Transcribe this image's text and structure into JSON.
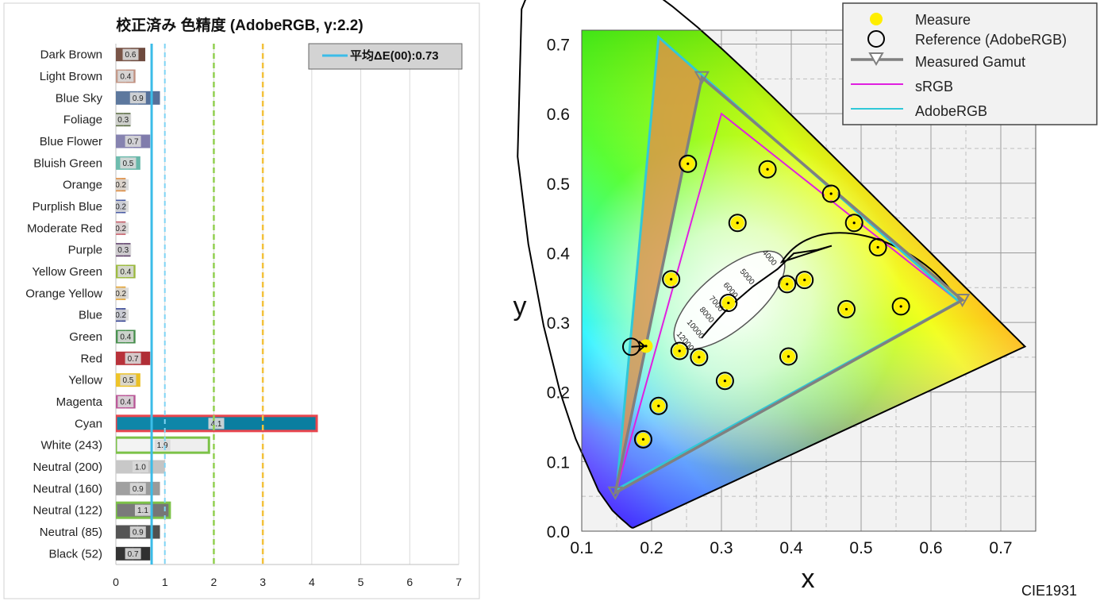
{
  "chart_data": [
    {
      "type": "bar",
      "title": "校正済み 色精度 (AdobeRGB, γ:2.2)",
      "legend": {
        "label": "平均ΔE(00):0.73",
        "position": "top-right"
      },
      "mean": 0.73,
      "reference_lines": [
        1,
        2,
        3
      ],
      "xlim": [
        0,
        7
      ],
      "xticks": [
        "0",
        "1",
        "2",
        "3",
        "4",
        "5",
        "6",
        "7"
      ],
      "grid": true,
      "bars": [
        {
          "name": "Dark Brown",
          "value": 0.6,
          "label": "0.6",
          "measured_color": "#7a5548",
          "reference_color": "#6e4a3e",
          "outline": ""
        },
        {
          "name": "Light Brown",
          "value": 0.4,
          "label": "0.4",
          "measured_color": "#c49a8a",
          "reference_color": "#c09080",
          "outline": ""
        },
        {
          "name": "Blue Sky",
          "value": 0.9,
          "label": "0.9",
          "measured_color": "#5d789e",
          "reference_color": "#55709a",
          "outline": ""
        },
        {
          "name": "Foliage",
          "value": 0.3,
          "label": "0.3",
          "measured_color": "#5b6e42",
          "reference_color": "#55683e",
          "outline": ""
        },
        {
          "name": "Blue Flower",
          "value": 0.7,
          "label": "0.7",
          "measured_color": "#8683b0",
          "reference_color": "#807cac",
          "outline": ""
        },
        {
          "name": "Bluish Green",
          "value": 0.5,
          "label": "0.5",
          "measured_color": "#6ebcae",
          "reference_color": "#68b8aa",
          "outline": ""
        },
        {
          "name": "Orange",
          "value": 0.2,
          "label": "0.2",
          "measured_color": "#e08a3a",
          "reference_color": "#dc8636",
          "outline": ""
        },
        {
          "name": "Purplish Blue",
          "value": 0.2,
          "label": "0.2",
          "measured_color": "#4a5ca6",
          "reference_color": "#4658a2",
          "outline": ""
        },
        {
          "name": "Moderate Red",
          "value": 0.2,
          "label": "0.2",
          "measured_color": "#c85a66",
          "reference_color": "#c45662",
          "outline": ""
        },
        {
          "name": "Purple",
          "value": 0.3,
          "label": "0.3",
          "measured_color": "#5e3e6a",
          "reference_color": "#5a3a66",
          "outline": ""
        },
        {
          "name": "Yellow Green",
          "value": 0.4,
          "label": "0.4",
          "measured_color": "#9ebc42",
          "reference_color": "#9ab83e",
          "outline": ""
        },
        {
          "name": "Orange Yellow",
          "value": 0.2,
          "label": "0.2",
          "measured_color": "#e8a42e",
          "reference_color": "#e4a02a",
          "outline": ""
        },
        {
          "name": "Blue",
          "value": 0.2,
          "label": "0.2",
          "measured_color": "#2e3e92",
          "reference_color": "#2a3a8e",
          "outline": ""
        },
        {
          "name": "Green",
          "value": 0.4,
          "label": "0.4",
          "measured_color": "#4a9250",
          "reference_color": "#468e4c",
          "outline": ""
        },
        {
          "name": "Red",
          "value": 0.7,
          "label": "0.7",
          "measured_color": "#b8323a",
          "reference_color": "#b02e36",
          "outline": ""
        },
        {
          "name": "Yellow",
          "value": 0.5,
          "label": "0.5",
          "measured_color": "#eec42a",
          "reference_color": "#eac026",
          "outline": ""
        },
        {
          "name": "Magenta",
          "value": 0.4,
          "label": "0.4",
          "measured_color": "#bc5a9a",
          "reference_color": "#b85696",
          "outline": ""
        },
        {
          "name": "Cyan",
          "value": 4.1,
          "label": "4.1",
          "measured_color": "#0e86a8",
          "reference_color": "#0a7ea0",
          "outline": "#e8464e"
        },
        {
          "name": "White (243)",
          "value": 1.9,
          "label": "1.9",
          "measured_color": "#f3f3f3",
          "reference_color": "#eeeeee",
          "outline": "#7cc248"
        },
        {
          "name": "Neutral (200)",
          "value": 1.0,
          "label": "1.0",
          "measured_color": "#c8c8c8",
          "reference_color": "#c4c4c4",
          "outline": ""
        },
        {
          "name": "Neutral (160)",
          "value": 0.9,
          "label": "0.9",
          "measured_color": "#a0a0a0",
          "reference_color": "#9a9a9a",
          "outline": ""
        },
        {
          "name": "Neutral (122)",
          "value": 1.1,
          "label": "1.1",
          "measured_color": "#7a7a7a",
          "reference_color": "#767676",
          "outline": "#7cc248"
        },
        {
          "name": "Neutral (85)",
          "value": 0.9,
          "label": "0.9",
          "measured_color": "#555555",
          "reference_color": "#505050",
          "outline": ""
        },
        {
          "name": "Black (52)",
          "value": 0.7,
          "label": "0.7",
          "measured_color": "#343434",
          "reference_color": "#303030",
          "outline": ""
        }
      ]
    },
    {
      "type": "scatter",
      "xlabel": "x",
      "ylabel": "y",
      "caption": "CIE1931",
      "xlim": [
        0.1,
        0.75
      ],
      "ylim": [
        0.0,
        0.72
      ],
      "xticks": [
        "0.1",
        "0.2",
        "0.3",
        "0.4",
        "0.5",
        "0.6",
        "0.7"
      ],
      "yticks": [
        "0.0",
        "0.1",
        "0.2",
        "0.3",
        "0.4",
        "0.5",
        "0.6",
        "0.7"
      ],
      "grid": true,
      "legend": {
        "position": "top-right",
        "items": [
          {
            "label": "Measure"
          },
          {
            "label": "Reference (AdobeRGB)"
          },
          {
            "label": "Measured Gamut"
          },
          {
            "label": "sRGB"
          },
          {
            "label": "AdobeRGB"
          }
        ]
      },
      "series": [
        {
          "name": "Measure",
          "color": "#ffee00",
          "points": [
            [
              0.188,
              0.132
            ],
            [
              0.21,
              0.18
            ],
            [
              0.24,
              0.259
            ],
            [
              0.268,
              0.25
            ],
            [
              0.305,
              0.216
            ],
            [
              0.396,
              0.251
            ],
            [
              0.228,
              0.362
            ],
            [
              0.252,
              0.528
            ],
            [
              0.323,
              0.443
            ],
            [
              0.366,
              0.52
            ],
            [
              0.457,
              0.485
            ],
            [
              0.49,
              0.443
            ],
            [
              0.524,
              0.408
            ],
            [
              0.557,
              0.323
            ],
            [
              0.479,
              0.319
            ],
            [
              0.31,
              0.328
            ],
            [
              0.394,
              0.355
            ],
            [
              0.419,
              0.361
            ],
            [
              0.192,
              0.266
            ]
          ]
        },
        {
          "name": "Reference (AdobeRGB)",
          "color": "#000000",
          "points": [
            [
              0.188,
              0.132
            ],
            [
              0.21,
              0.18
            ],
            [
              0.24,
              0.259
            ],
            [
              0.268,
              0.25
            ],
            [
              0.305,
              0.216
            ],
            [
              0.396,
              0.251
            ],
            [
              0.228,
              0.362
            ],
            [
              0.252,
              0.528
            ],
            [
              0.323,
              0.443
            ],
            [
              0.366,
              0.52
            ],
            [
              0.457,
              0.485
            ],
            [
              0.49,
              0.443
            ],
            [
              0.524,
              0.408
            ],
            [
              0.557,
              0.323
            ],
            [
              0.479,
              0.319
            ],
            [
              0.31,
              0.328
            ],
            [
              0.394,
              0.355
            ],
            [
              0.419,
              0.361
            ],
            [
              0.171,
              0.265
            ]
          ]
        },
        {
          "name": "Measured Gamut",
          "color": "#808080",
          "points": [
            [
              0.645,
              0.332
            ],
            [
              0.272,
              0.652
            ],
            [
              0.148,
              0.055
            ]
          ]
        },
        {
          "name": "sRGB",
          "color": "#e020e0",
          "points": [
            [
              0.64,
              0.33
            ],
            [
              0.3,
              0.6
            ],
            [
              0.15,
              0.06
            ]
          ]
        },
        {
          "name": "AdobeRGB",
          "color": "#30c8d8",
          "points": [
            [
              0.64,
              0.33
            ],
            [
              0.21,
              0.71
            ],
            [
              0.15,
              0.06
            ]
          ]
        }
      ],
      "cct_labels": [
        "4000",
        "5000",
        "6000",
        "7000",
        "8000",
        "10000",
        "12000"
      ],
      "cct_locus": [
        [
          0.4578,
          0.4101
        ],
        [
          0.4366,
          0.4042
        ],
        [
          0.4036,
          0.3993
        ],
        [
          0.3805,
          0.3768
        ],
        [
          0.3451,
          0.3516
        ],
        [
          0.3221,
          0.3318
        ],
        [
          0.3064,
          0.3166
        ],
        [
          0.2952,
          0.3048
        ],
        [
          0.2807,
          0.2884
        ],
        [
          0.2716,
          0.2776
        ]
      ]
    }
  ]
}
